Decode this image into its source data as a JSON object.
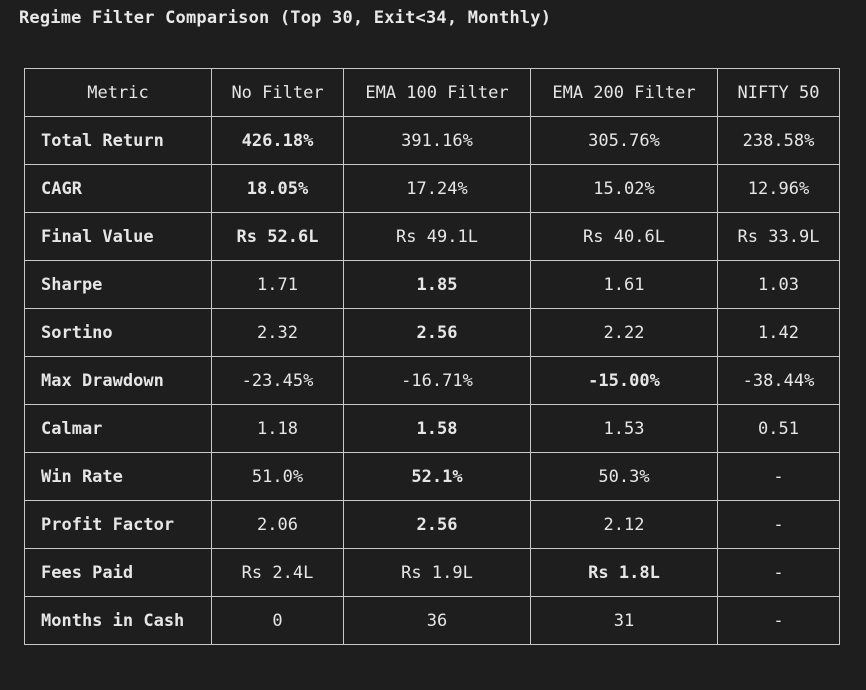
{
  "title": "Regime Filter Comparison (Top 30, Exit<34, Monthly)",
  "columns": [
    "Metric",
    "No Filter",
    "EMA 100 Filter",
    "EMA 200 Filter",
    "NIFTY 50"
  ],
  "rows": [
    {
      "metric": "Total Return",
      "values": [
        "426.18%",
        "391.16%",
        "305.76%",
        "238.58%"
      ],
      "bold": [
        true,
        false,
        false,
        false
      ]
    },
    {
      "metric": "CAGR",
      "values": [
        "18.05%",
        "17.24%",
        "15.02%",
        "12.96%"
      ],
      "bold": [
        true,
        false,
        false,
        false
      ]
    },
    {
      "metric": "Final Value",
      "values": [
        "Rs 52.6L",
        "Rs 49.1L",
        "Rs 40.6L",
        "Rs 33.9L"
      ],
      "bold": [
        true,
        false,
        false,
        false
      ]
    },
    {
      "metric": "Sharpe",
      "values": [
        "1.71",
        "1.85",
        "1.61",
        "1.03"
      ],
      "bold": [
        false,
        true,
        false,
        false
      ]
    },
    {
      "metric": "Sortino",
      "values": [
        "2.32",
        "2.56",
        "2.22",
        "1.42"
      ],
      "bold": [
        false,
        true,
        false,
        false
      ]
    },
    {
      "metric": "Max Drawdown",
      "values": [
        "-23.45%",
        "-16.71%",
        "-15.00%",
        "-38.44%"
      ],
      "bold": [
        false,
        false,
        true,
        false
      ]
    },
    {
      "metric": "Calmar",
      "values": [
        "1.18",
        "1.58",
        "1.53",
        "0.51"
      ],
      "bold": [
        false,
        true,
        false,
        false
      ]
    },
    {
      "metric": "Win Rate",
      "values": [
        "51.0%",
        "52.1%",
        "50.3%",
        "-"
      ],
      "bold": [
        false,
        true,
        false,
        false
      ]
    },
    {
      "metric": "Profit Factor",
      "values": [
        "2.06",
        "2.56",
        "2.12",
        "-"
      ],
      "bold": [
        false,
        true,
        false,
        false
      ]
    },
    {
      "metric": "Fees Paid",
      "values": [
        "Rs 2.4L",
        "Rs 1.9L",
        "Rs 1.8L",
        "-"
      ],
      "bold": [
        false,
        false,
        true,
        false
      ]
    },
    {
      "metric": "Months in Cash",
      "values": [
        "0",
        "36",
        "31",
        "-"
      ],
      "bold": [
        false,
        false,
        false,
        false
      ]
    }
  ]
}
